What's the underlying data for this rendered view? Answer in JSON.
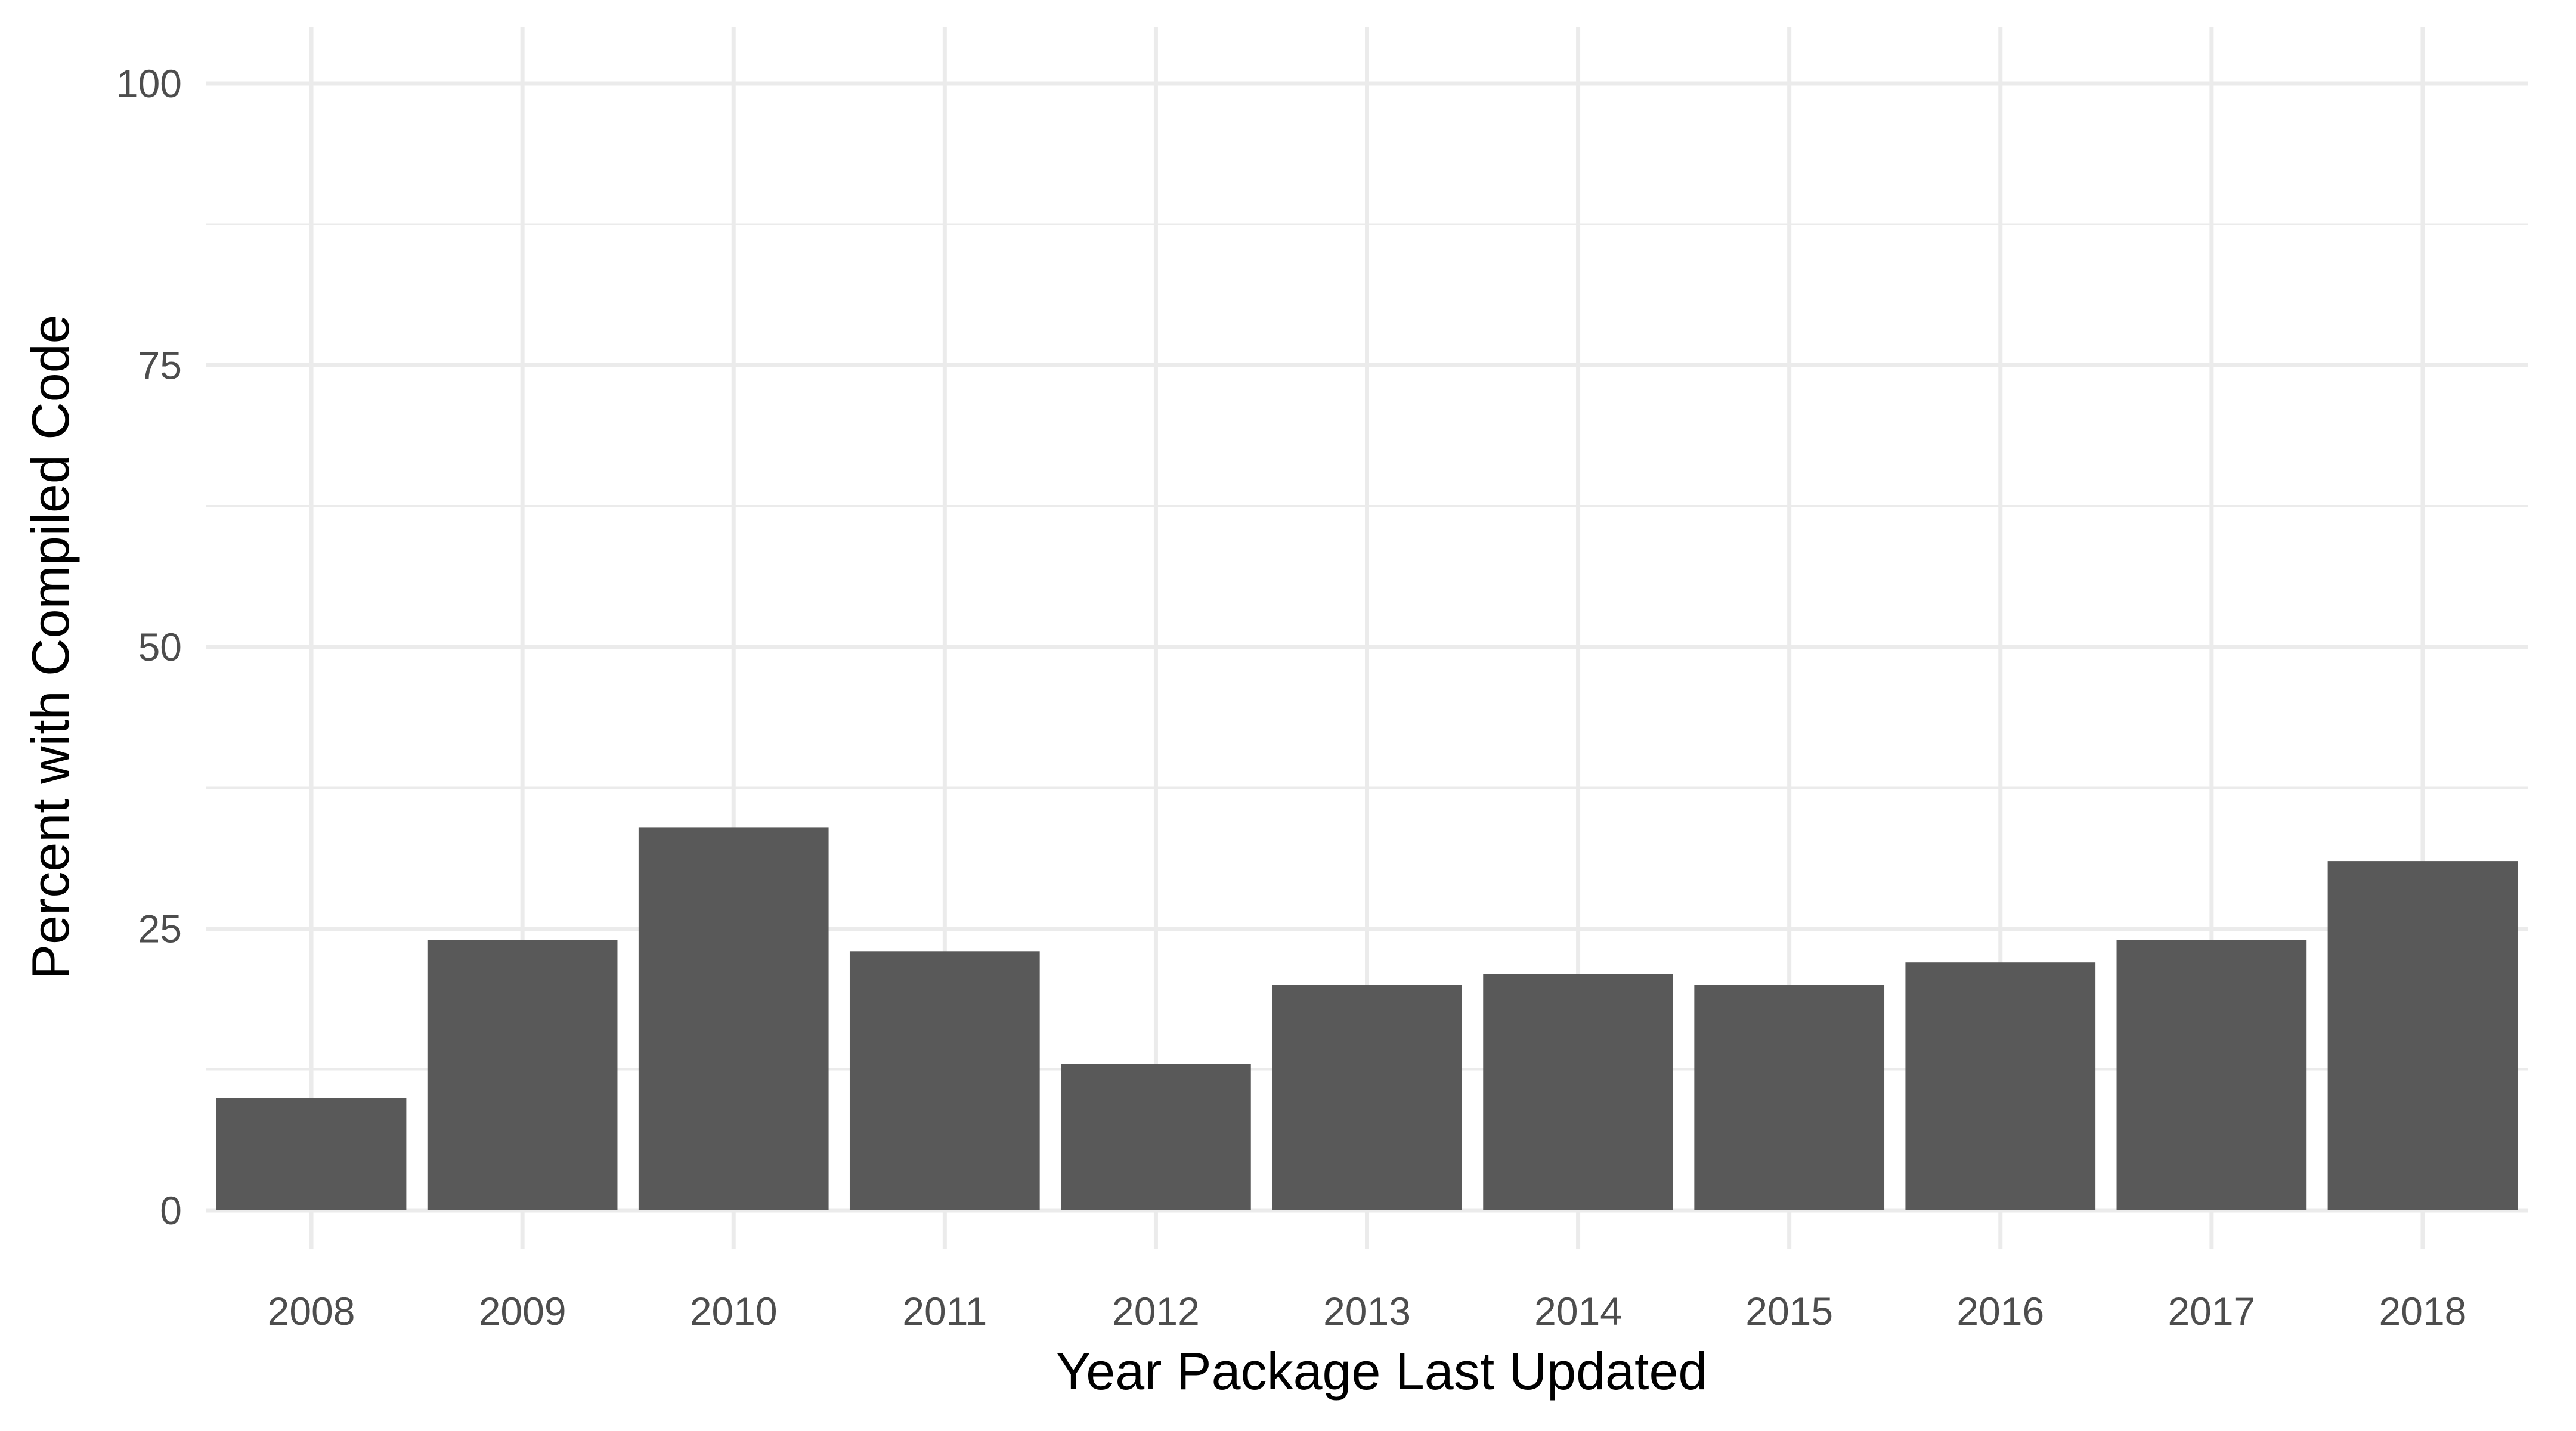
{
  "chart_data": {
    "type": "bar",
    "title": "",
    "xlabel": "Year Package Last Updated",
    "ylabel": "Percent with Compiled Code",
    "categories": [
      "2008",
      "2009",
      "2010",
      "2011",
      "2012",
      "2013",
      "2014",
      "2015",
      "2016",
      "2017",
      "2018"
    ],
    "values": [
      10,
      24,
      34,
      23,
      13,
      20,
      21,
      20,
      22,
      24,
      31
    ],
    "ylim": [
      0,
      100
    ],
    "yticks": [
      0,
      25,
      50,
      75,
      100
    ],
    "yticks_minor": [
      12.5,
      37.5,
      62.5,
      87.5
    ],
    "ytick_labels": [
      "0",
      "25",
      "50",
      "75",
      "100"
    ],
    "grid": true,
    "legend": "none",
    "colors": {
      "bar": "#595959",
      "grid": "#ebebeb",
      "tick_text": "#4d4d4d",
      "title_text": "#000000",
      "background": "#ffffff"
    }
  }
}
